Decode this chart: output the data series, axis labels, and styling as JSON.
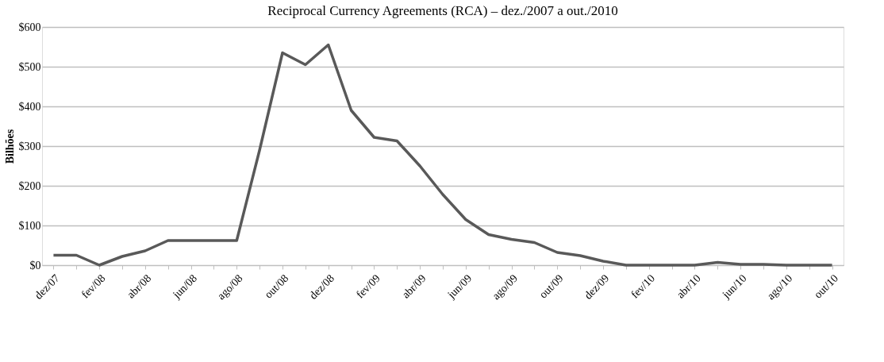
{
  "chart_data": {
    "type": "line",
    "title": "Reciprocal Currency Agreements (RCA) – dez./2007 a out./2010",
    "ylabel": "Bilhões",
    "categories": [
      "dez/07",
      null,
      "fev/08",
      null,
      "abr/08",
      null,
      "jun/08",
      null,
      "ago/08",
      null,
      "out/08",
      null,
      "dez/08",
      null,
      "fev/09",
      null,
      "abr/09",
      null,
      "jun/09",
      null,
      "ago/09",
      null,
      "out/09",
      null,
      "dez/09",
      null,
      "fev/10",
      null,
      "abr/10",
      null,
      "jun/10",
      null,
      "ago/10",
      null,
      "out/10"
    ],
    "series": [
      {
        "color": "#595959",
        "values": [
          25,
          25,
          0,
          22,
          36,
          62,
          62,
          62,
          62,
          290,
          535,
          505,
          555,
          390,
          322,
          313,
          250,
          178,
          115,
          77,
          65,
          57,
          32,
          24,
          10,
          0,
          0,
          0,
          0,
          7,
          2,
          2,
          0,
          0,
          0
        ]
      }
    ],
    "ylim": [
      0,
      600
    ],
    "yticks": [
      {
        "value": 0,
        "label": "$0"
      },
      {
        "value": 100,
        "label": "$100"
      },
      {
        "value": 200,
        "label": "$200"
      },
      {
        "value": 300,
        "label": "$300"
      },
      {
        "value": 400,
        "label": "$400"
      },
      {
        "value": 500,
        "label": "$500"
      },
      {
        "value": 600,
        "label": "$600"
      }
    ],
    "grid": "y",
    "marker": "none",
    "line_style": "solid"
  }
}
